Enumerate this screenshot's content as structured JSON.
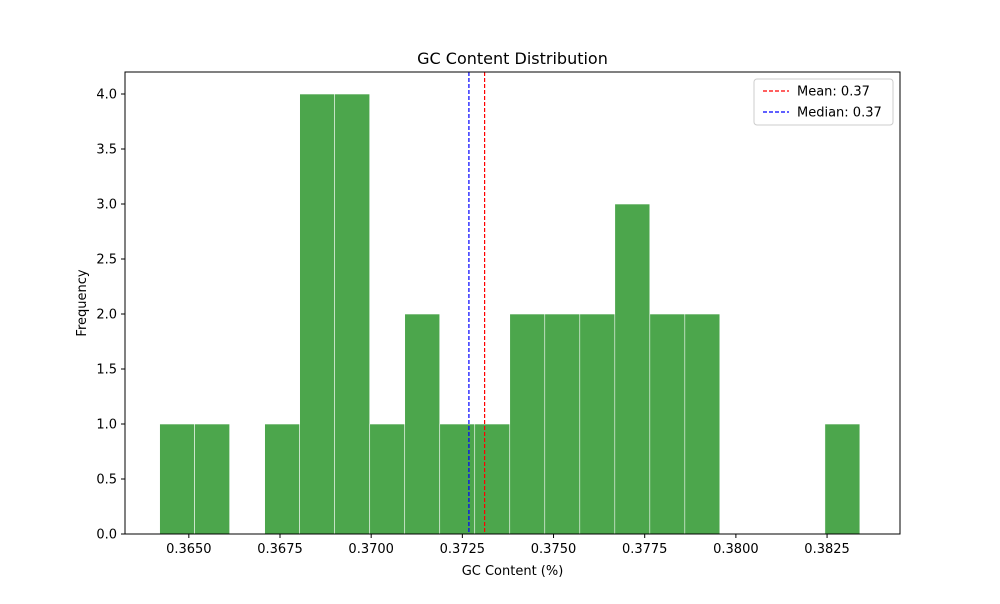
{
  "chart_data": {
    "type": "bar",
    "title": "GC Content Distribution",
    "xlabel": "GC Content (%)",
    "ylabel": "Frequency",
    "xlim": [
      0.36325,
      0.3845
    ],
    "ylim": [
      0,
      4.2
    ],
    "x_ticks": [
      {
        "value": 0.365,
        "label": "0.3650"
      },
      {
        "value": 0.3675,
        "label": "0.3675"
      },
      {
        "value": 0.37,
        "label": "0.3700"
      },
      {
        "value": 0.3725,
        "label": "0.3725"
      },
      {
        "value": 0.375,
        "label": "0.3750"
      },
      {
        "value": 0.3775,
        "label": "0.3775"
      },
      {
        "value": 0.38,
        "label": "0.3800"
      },
      {
        "value": 0.3825,
        "label": "0.3825"
      }
    ],
    "y_ticks": [
      {
        "value": 0,
        "label": "0.0"
      },
      {
        "value": 0.5,
        "label": "0.5"
      },
      {
        "value": 1,
        "label": "1.0"
      },
      {
        "value": 1.5,
        "label": "1.5"
      },
      {
        "value": 2,
        "label": "2.0"
      },
      {
        "value": 2.5,
        "label": "2.5"
      },
      {
        "value": 3,
        "label": "3.0"
      },
      {
        "value": 3.5,
        "label": "3.5"
      },
      {
        "value": 4,
        "label": "4.0"
      }
    ],
    "bins": [
      {
        "x0": 0.3642,
        "x1": 0.36516,
        "count": 1
      },
      {
        "x0": 0.36516,
        "x1": 0.36612,
        "count": 1
      },
      {
        "x0": 0.36612,
        "x1": 0.36708,
        "count": 0
      },
      {
        "x0": 0.36708,
        "x1": 0.36804,
        "count": 1
      },
      {
        "x0": 0.36804,
        "x1": 0.369,
        "count": 4
      },
      {
        "x0": 0.369,
        "x1": 0.36996,
        "count": 4
      },
      {
        "x0": 0.36996,
        "x1": 0.37092,
        "count": 1
      },
      {
        "x0": 0.37092,
        "x1": 0.37188,
        "count": 2
      },
      {
        "x0": 0.37188,
        "x1": 0.37284,
        "count": 1
      },
      {
        "x0": 0.37284,
        "x1": 0.3738,
        "count": 1
      },
      {
        "x0": 0.3738,
        "x1": 0.37476,
        "count": 2
      },
      {
        "x0": 0.37476,
        "x1": 0.37572,
        "count": 2
      },
      {
        "x0": 0.37572,
        "x1": 0.37668,
        "count": 2
      },
      {
        "x0": 0.37668,
        "x1": 0.37764,
        "count": 3
      },
      {
        "x0": 0.37764,
        "x1": 0.3786,
        "count": 2
      },
      {
        "x0": 0.3786,
        "x1": 0.37956,
        "count": 2
      },
      {
        "x0": 0.37956,
        "x1": 0.38052,
        "count": 0
      },
      {
        "x0": 0.38052,
        "x1": 0.38148,
        "count": 0
      },
      {
        "x0": 0.38148,
        "x1": 0.38244,
        "count": 0
      },
      {
        "x0": 0.38244,
        "x1": 0.3834,
        "count": 1
      }
    ],
    "bar_color": "#4ca64c",
    "reference_lines": [
      {
        "name": "Mean: 0.37",
        "value": 0.37311,
        "color": "#ff0000",
        "style": "dashed"
      },
      {
        "name": "Median: 0.37",
        "value": 0.37268,
        "color": "#0000ff",
        "style": "dashed"
      }
    ],
    "legend_position": "top-right",
    "grid": false
  }
}
